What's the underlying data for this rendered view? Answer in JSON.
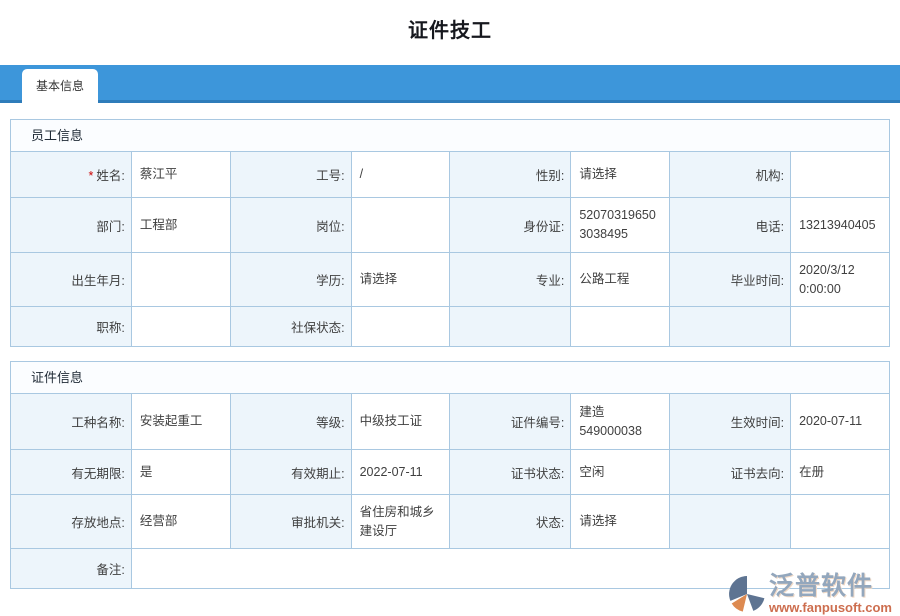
{
  "page": {
    "title": "证件技工"
  },
  "tab_bar": {
    "tabs": [
      {
        "label": "基本信息",
        "active": true
      }
    ]
  },
  "sections": [
    {
      "title": "员工信息",
      "rows": [
        {
          "height": 46,
          "cells": [
            {
              "label": "姓名:",
              "required": true,
              "value": "蔡江平"
            },
            {
              "label": "工号:",
              "value": "/"
            },
            {
              "label": "性别:",
              "value": "请选择"
            },
            {
              "label": "机构:",
              "value": ""
            }
          ]
        },
        {
          "height": 55,
          "cells": [
            {
              "label": "部门:",
              "value": "工程部"
            },
            {
              "label": "岗位:",
              "value": ""
            },
            {
              "label": "身份证:",
              "value": "52070319650\n3038495"
            },
            {
              "label": "电话:",
              "value": "13213940405"
            }
          ]
        },
        {
          "height": 54,
          "cells": [
            {
              "label": "出生年月:",
              "value": ""
            },
            {
              "label": "学历:",
              "value": "请选择"
            },
            {
              "label": "专业:",
              "value": "公路工程"
            },
            {
              "label": "毕业时间:",
              "value": "2020/3/12\n0:00:00"
            }
          ]
        },
        {
          "height": 40,
          "cells": [
            {
              "label": "职称:",
              "value": ""
            },
            {
              "label": "社保状态:",
              "value": ""
            },
            {
              "label": "",
              "value": ""
            },
            {
              "label": "",
              "value": ""
            }
          ]
        }
      ]
    },
    {
      "title": "证件信息",
      "rows": [
        {
          "height": 56,
          "cells": [
            {
              "label": "工种名称:",
              "value": "安装起重工"
            },
            {
              "label": "等级:",
              "value": "中级技工证"
            },
            {
              "label": "证件编号:",
              "value": "建造\n549000038"
            },
            {
              "label": "生效时间:",
              "value": "2020-07-11"
            }
          ]
        },
        {
          "height": 45,
          "cells": [
            {
              "label": "有无期限:",
              "value": "是"
            },
            {
              "label": "有效期止:",
              "value": "2022-07-11"
            },
            {
              "label": "证书状态:",
              "value": "空闲"
            },
            {
              "label": "证书去向:",
              "value": "在册"
            }
          ]
        },
        {
          "height": 54,
          "cells": [
            {
              "label": "存放地点:",
              "value": "经营部"
            },
            {
              "label": "审批机关:",
              "value": "省住房和城乡\n建设厅"
            },
            {
              "label": "状态:",
              "value": "请选择"
            },
            {
              "label": "",
              "value": ""
            }
          ]
        },
        {
          "height": 40,
          "cells": [
            {
              "label": "备注:",
              "value": "",
              "value_colspan": 7
            }
          ]
        }
      ]
    }
  ],
  "watermark": {
    "brand": "泛普软件",
    "url": "www.fanpusoft.com"
  },
  "colors": {
    "tab_bar": "#3d96da",
    "tab_bar_edge": "#2e7cba",
    "table_border": "#a9c8e1",
    "label_cell_bg": "#edf5fb",
    "section_header_bg": "#fbfdff",
    "required_asterisk": "#cc0000",
    "watermark_brand": "#93a7bd",
    "watermark_url": "#cd6e4f"
  }
}
